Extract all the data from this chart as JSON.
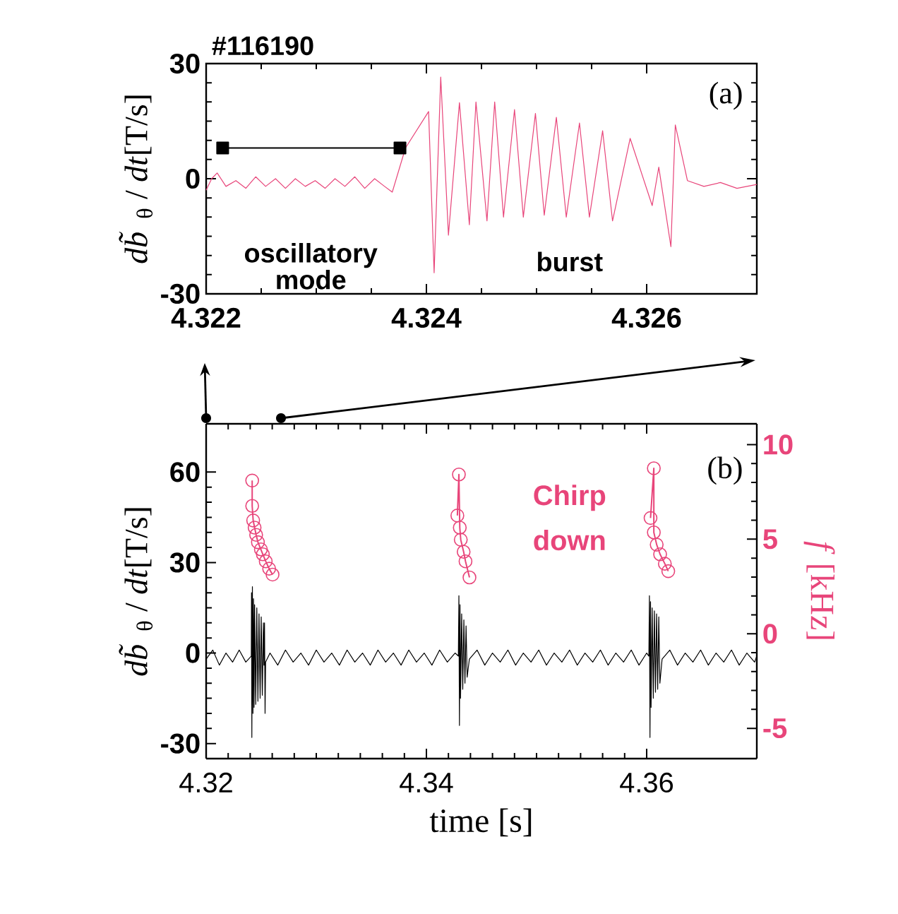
{
  "chart_data": [
    {
      "type": "line",
      "title": "#116190",
      "ylabel": "*db̃*$_{θ}$ / *dt*[T/s]",
      "xlim": [
        4.322,
        4.327
      ],
      "xticks": [
        4.322,
        4.324,
        4.326
      ],
      "ylim": [
        -30,
        30
      ],
      "yticks": [
        -30,
        0,
        30
      ],
      "annotations": [
        "(a)",
        "oscillatory mode",
        "burst"
      ],
      "series": [
        {
          "color": "#e8457a",
          "x": [
            4.322,
            4.32205,
            4.3221,
            4.32218,
            4.32227,
            4.32236,
            4.32245,
            4.32254,
            4.32263,
            4.32272,
            4.32281,
            4.3229,
            4.32299,
            4.32308,
            4.32317,
            4.32326,
            4.32335,
            4.32344,
            4.32353,
            4.32362,
            4.32369,
            4.32381,
            4.32402,
            4.32407,
            4.32413,
            4.3242,
            4.3243,
            4.32439,
            4.32445,
            4.32455,
            4.32462,
            4.3247,
            4.3248,
            4.32488,
            4.32499,
            4.32507,
            4.32518,
            4.32527,
            4.32539,
            4.32548,
            4.3256,
            4.32569,
            4.32585,
            4.32605,
            4.32611,
            4.32622,
            4.32626,
            4.32637,
            4.32652,
            4.32667,
            4.32682,
            4.327
          ],
          "values": [
            -3,
            0,
            1.5,
            -2,
            -0.5,
            -2.5,
            0.5,
            -2,
            0,
            -2.5,
            0,
            -2,
            -0.5,
            -2.5,
            0,
            -2,
            0.5,
            -2.5,
            0,
            -2,
            -3.5,
            8,
            17.5,
            -24.5,
            26.5,
            -14.7,
            19.8,
            -12,
            20,
            -11,
            20,
            -10,
            18,
            -10,
            17,
            -9.5,
            16,
            -10,
            14.5,
            -10,
            12.5,
            -11,
            10.5,
            -7,
            3,
            -17.7,
            14,
            -0.5,
            -2,
            -1,
            -2.5,
            -1.5
          ]
        },
        {
          "color": "#000000",
          "marker": "square",
          "x": [
            4.32215,
            4.32376
          ],
          "values": [
            8,
            8
          ]
        }
      ]
    },
    {
      "type": "line",
      "xlabel": "time [s]",
      "ylabel": "*db̃*$_{θ}$ / *dt*[T/s]",
      "y2label": "*f* [kHz]",
      "xlim": [
        4.32,
        4.37
      ],
      "xticks": [
        4.32,
        4.34,
        4.36
      ],
      "ylim": [
        -35,
        76
      ],
      "yticks": [
        -30,
        0,
        30,
        60
      ],
      "y2lim": [
        -6.6,
        11.1
      ],
      "y2ticks": [
        -5,
        0,
        5,
        10
      ],
      "annotations": [
        "(b)",
        "Chirp down"
      ],
      "series": [
        {
          "color": "#000000",
          "x": [
            4.32,
            4.3206,
            4.3212,
            4.3218,
            4.3224,
            4.323,
            4.3236,
            4.3241,
            4.32412,
            4.32415,
            4.3242,
            4.32425,
            4.3243,
            4.32435,
            4.3244,
            4.3245,
            4.3246,
            4.3247,
            4.3248,
            4.3249,
            4.325,
            4.3251,
            4.3252,
            4.32525,
            4.3253,
            4.32535,
            4.3254,
            4.3258,
            4.3265,
            4.3272,
            4.3279,
            4.3286,
            4.3293,
            4.33,
            4.3307,
            4.3314,
            4.3321,
            4.3328,
            4.3335,
            4.3342,
            4.3349,
            4.3356,
            4.3363,
            4.337,
            4.3377,
            4.3384,
            4.3391,
            4.3398,
            4.3405,
            4.3412,
            4.3419,
            4.3426,
            4.3429,
            4.34295,
            4.343,
            4.34305,
            4.3431,
            4.3432,
            4.3433,
            4.3434,
            4.3435,
            4.3436,
            4.3437,
            4.3439,
            4.3446,
            4.3453,
            4.346,
            4.3467,
            4.3474,
            4.3481,
            4.3488,
            4.3495,
            4.3502,
            4.3509,
            4.3516,
            4.3523,
            4.353,
            4.3537,
            4.3544,
            4.3551,
            4.3558,
            4.3565,
            4.3572,
            4.3579,
            4.3586,
            4.3593,
            4.36,
            4.3602,
            4.36025,
            4.3603,
            4.36035,
            4.3604,
            4.3605,
            4.3606,
            4.3607,
            4.3608,
            4.3609,
            4.361,
            4.3611,
            4.3612,
            4.3614,
            4.3621,
            4.3628,
            4.3635,
            4.3642,
            4.3649,
            4.3656,
            4.3663,
            4.367,
            4.3677,
            4.3684,
            4.3691,
            4.3698,
            4.37
          ],
          "values": [
            -2,
            1,
            -4,
            0,
            -3,
            1,
            -3,
            -1,
            20,
            -28,
            22,
            -20,
            18,
            -18,
            16,
            -17,
            15,
            -16,
            13,
            -15,
            12,
            -14,
            10,
            -4,
            10,
            -20,
            -3,
            0,
            -4,
            1,
            -3,
            0,
            -4,
            1,
            -3,
            0,
            -4,
            1,
            -3,
            0,
            -4,
            1,
            -3,
            0,
            -4,
            1,
            -3,
            0,
            -4,
            1,
            -3,
            0,
            -1,
            19,
            -24,
            16,
            -15,
            13,
            -12,
            11,
            -10,
            9,
            -8,
            -2,
            1,
            -4,
            0,
            -3,
            1,
            -4,
            0,
            -3,
            1,
            -4,
            0,
            -3,
            1,
            -4,
            0,
            -3,
            1,
            -4,
            0,
            -3,
            1,
            -4,
            0,
            -1,
            19,
            -28,
            17,
            -18,
            15,
            -15,
            14,
            -13,
            13,
            -12,
            12,
            -10,
            -2,
            1,
            -4,
            0,
            -3,
            1,
            -4,
            0,
            -3,
            1,
            -4,
            0,
            -3,
            -1
          ]
        },
        {
          "color": "#e8457a",
          "axis": "y2",
          "marker": "circle",
          "x": [
            4.32418,
            4.32418,
            4.32427,
            4.3244,
            4.32454,
            4.3247,
            4.32497,
            4.32515,
            4.32541,
            4.32572,
            4.32603,
            4.334,
            4.34281,
            4.34295,
            4.34303,
            4.34312,
            4.34338,
            4.34355,
            4.34391,
            4.352,
            4.36035,
            4.36065,
            4.36065,
            4.36091,
            4.36122,
            4.36165,
            4.36196
          ],
          "values": [
            8.1,
            6.76,
            5.99,
            5.61,
            5.23,
            4.84,
            4.46,
            4.2,
            3.83,
            3.44,
            3.13,
            null,
            6.25,
            8.42,
            5.61,
            4.97,
            4.33,
            3.83,
            2.98,
            null,
            6.12,
            8.75,
            5.36,
            4.71,
            4.2,
            3.7,
            3.31
          ]
        }
      ]
    }
  ]
}
